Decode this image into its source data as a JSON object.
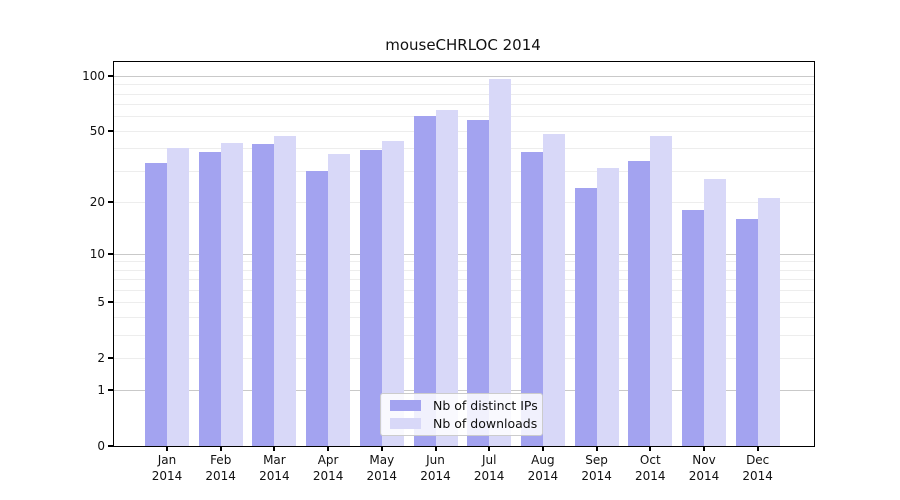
{
  "figure": {
    "title": "mouseCHRLOC 2014"
  },
  "y_axis": {
    "tick_values": [
      100,
      50,
      20,
      10,
      5,
      2,
      1,
      0
    ],
    "tick_labels": [
      "100",
      "50",
      "20",
      "10",
      "5",
      "2",
      "1",
      "0"
    ],
    "major_grid_values": [
      1,
      10,
      100
    ],
    "minor_grid_values": [
      2,
      3,
      4,
      5,
      6,
      7,
      8,
      9,
      20,
      30,
      40,
      50,
      60,
      70,
      80,
      90
    ]
  },
  "x_axis": {
    "months": [
      "Jan",
      "Feb",
      "Mar",
      "Apr",
      "May",
      "Jun",
      "Jul",
      "Aug",
      "Sep",
      "Oct",
      "Nov",
      "Dec"
    ],
    "year": "2014"
  },
  "legend": {
    "items": [
      {
        "label": "Nb of distinct IPs",
        "series": "ips"
      },
      {
        "label": "Nb of downloads",
        "series": "downloads"
      }
    ]
  },
  "colors": {
    "ips": "#a3a3f0",
    "downloads": "#d8d8f8",
    "grid_major": "#c9c9c9",
    "grid_minor": "#ededed",
    "axis": "#000000",
    "legend_border": "#cccccc"
  },
  "chart_data": {
    "type": "bar",
    "title": "mouseCHRLOC 2014",
    "categories": [
      "Jan 2014",
      "Feb 2014",
      "Mar 2014",
      "Apr 2014",
      "May 2014",
      "Jun 2014",
      "Jul 2014",
      "Aug 2014",
      "Sep 2014",
      "Oct 2014",
      "Nov 2014",
      "Dec 2014"
    ],
    "series": [
      {
        "name": "Nb of distinct IPs",
        "color": "#a3a3f0",
        "values": [
          33,
          38,
          42,
          30,
          39,
          60,
          57,
          38,
          24,
          34,
          18,
          16
        ]
      },
      {
        "name": "Nb of downloads",
        "color": "#d8d8f8",
        "values": [
          40,
          43,
          47,
          37,
          44,
          65,
          96,
          48,
          31,
          47,
          27,
          21
        ]
      }
    ],
    "yscale": "log1p",
    "yticks": [
      0,
      1,
      2,
      5,
      10,
      20,
      50,
      100
    ],
    "ylim": [
      0,
      110
    ],
    "grid": "horizontal",
    "legend_position": "lower center (inside plot)"
  }
}
